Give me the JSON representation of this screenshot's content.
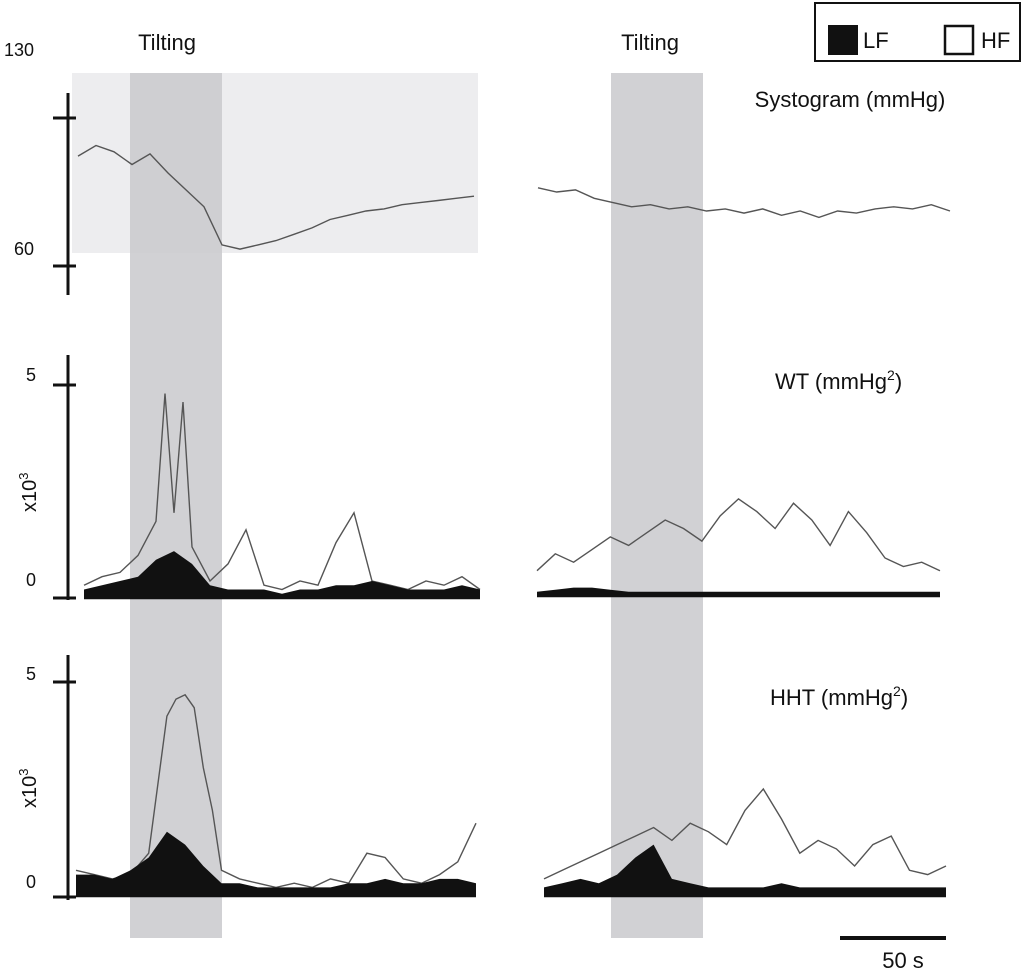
{
  "colors": {
    "tilt_band": "#c9c9cc",
    "systogram_bg": "#ededef",
    "axis": "#111111",
    "hf_line": "#555555",
    "lf_fill": "#111111"
  },
  "legend": {
    "lf_label": "LF",
    "hf_label": "HF"
  },
  "tilt_labels": [
    "Tilting",
    "Tilting"
  ],
  "scale_bar": {
    "label": "50 s",
    "seconds": 50
  },
  "chart_data": {
    "type": "line",
    "panels": [
      {
        "id": "systogram",
        "title": "Systogram (mmHg)",
        "y_ticks": [
          "130",
          "60"
        ],
        "ylim": [
          60,
          130
        ],
        "units": "mmHg",
        "tilting_window_s": [
          31,
          80
        ],
        "series": [
          {
            "name": "",
            "condition": "left",
            "x": [
              0,
              10,
              20,
              30,
              40,
              50,
              60,
              70,
              80,
              90,
              100,
              110,
              120,
              130,
              140,
              150,
              160,
              170,
              180,
              190,
              200,
              210,
              220
            ],
            "values": [
              112,
              117,
              114,
              108,
              113,
              104,
              96,
              88,
              70,
              68,
              70,
              72,
              75,
              78,
              82,
              84,
              86,
              87,
              89,
              90,
              91,
              92,
              93
            ]
          },
          {
            "name": "",
            "condition": "right",
            "x": [
              0,
              10,
              20,
              30,
              40,
              50,
              60,
              70,
              80,
              90,
              100,
              110,
              120,
              130,
              140,
              150,
              160,
              170,
              180,
              190,
              200,
              210,
              220
            ],
            "values": [
              97,
              95,
              96,
              92,
              90,
              88,
              89,
              87,
              88,
              86,
              87,
              85,
              87,
              84,
              86,
              83,
              86,
              85,
              87,
              88,
              87,
              89,
              86
            ]
          }
        ]
      },
      {
        "id": "wt",
        "title": "WT (mmHg",
        "title_sup": "2",
        "title_end": ")",
        "y_ticks": [
          "5",
          "0"
        ],
        "y_unit": "x10",
        "y_unit_sup": "3",
        "ylim": [
          0,
          5
        ],
        "series": [
          {
            "name": "HF",
            "condition": "left",
            "x": [
              0,
              10,
              20,
              30,
              40,
              45,
              50,
              55,
              60,
              70,
              80,
              90,
              100,
              110,
              120,
              130,
              140,
              150,
              160,
              170,
              180,
              190,
              200,
              210,
              220
            ],
            "values": [
              0.3,
              0.5,
              0.6,
              1.0,
              1.8,
              4.8,
              2.0,
              4.6,
              1.2,
              0.4,
              0.8,
              1.6,
              0.3,
              0.2,
              0.4,
              0.3,
              1.3,
              2.0,
              0.4,
              0.3,
              0.2,
              0.4,
              0.3,
              0.5,
              0.2
            ]
          },
          {
            "name": "LF",
            "condition": "left",
            "x": [
              0,
              10,
              20,
              30,
              40,
              50,
              60,
              70,
              80,
              90,
              100,
              110,
              120,
              130,
              140,
              150,
              160,
              170,
              180,
              190,
              200,
              210,
              220
            ],
            "values": [
              0.2,
              0.3,
              0.4,
              0.5,
              0.9,
              1.1,
              0.8,
              0.3,
              0.2,
              0.2,
              0.2,
              0.1,
              0.2,
              0.2,
              0.3,
              0.3,
              0.4,
              0.3,
              0.2,
              0.2,
              0.2,
              0.3,
              0.2
            ]
          },
          {
            "name": "HF",
            "condition": "right",
            "x": [
              0,
              10,
              20,
              30,
              40,
              50,
              60,
              70,
              80,
              90,
              100,
              110,
              120,
              130,
              140,
              150,
              160,
              170,
              180,
              190,
              200,
              210,
              220
            ],
            "values": [
              0.6,
              1.0,
              0.8,
              1.1,
              1.4,
              1.2,
              1.5,
              1.8,
              1.6,
              1.3,
              1.9,
              2.3,
              2.0,
              1.6,
              2.2,
              1.8,
              1.2,
              2.0,
              1.5,
              0.9,
              0.7,
              0.8,
              0.6
            ]
          },
          {
            "name": "LF",
            "condition": "right",
            "x": [
              0,
              10,
              20,
              30,
              40,
              50,
              60,
              70,
              80,
              90,
              100,
              110,
              120,
              130,
              140,
              150,
              160,
              170,
              180,
              190,
              200,
              210,
              220
            ],
            "values": [
              0.1,
              0.15,
              0.2,
              0.2,
              0.15,
              0.1,
              0.1,
              0.1,
              0.1,
              0.1,
              0.1,
              0.1,
              0.1,
              0.1,
              0.1,
              0.1,
              0.1,
              0.1,
              0.1,
              0.1,
              0.1,
              0.1,
              0.1
            ]
          }
        ]
      },
      {
        "id": "hht",
        "title": "HHT (mmHg",
        "title_sup": "2",
        "title_end": ")",
        "y_ticks": [
          "5",
          "0"
        ],
        "y_unit": "x10",
        "y_unit_sup": "3",
        "ylim": [
          0,
          5
        ],
        "series": [
          {
            "name": "HF",
            "condition": "left",
            "x": [
              0,
              10,
              20,
              30,
              40,
              50,
              55,
              60,
              65,
              70,
              75,
              80,
              90,
              100,
              110,
              120,
              130,
              140,
              150,
              160,
              170,
              180,
              190,
              200,
              210,
              220
            ],
            "values": [
              0.6,
              0.5,
              0.4,
              0.5,
              1.0,
              4.2,
              4.6,
              4.7,
              4.4,
              3.0,
              2.0,
              0.6,
              0.4,
              0.3,
              0.2,
              0.3,
              0.2,
              0.4,
              0.3,
              1.0,
              0.9,
              0.4,
              0.3,
              0.5,
              0.8,
              1.7
            ]
          },
          {
            "name": "LF",
            "condition": "left",
            "x": [
              0,
              10,
              20,
              30,
              40,
              50,
              60,
              70,
              80,
              90,
              100,
              110,
              120,
              130,
              140,
              150,
              160,
              170,
              180,
              190,
              200,
              210,
              220
            ],
            "values": [
              0.5,
              0.5,
              0.4,
              0.6,
              0.9,
              1.5,
              1.2,
              0.7,
              0.3,
              0.3,
              0.2,
              0.2,
              0.2,
              0.2,
              0.2,
              0.3,
              0.3,
              0.4,
              0.3,
              0.3,
              0.4,
              0.4,
              0.3
            ]
          },
          {
            "name": "HF",
            "condition": "right",
            "x": [
              0,
              10,
              20,
              30,
              40,
              50,
              60,
              70,
              80,
              90,
              100,
              110,
              120,
              130,
              140,
              150,
              160,
              170,
              180,
              190,
              200,
              210,
              220
            ],
            "values": [
              0.4,
              0.6,
              0.8,
              1.0,
              1.2,
              1.4,
              1.6,
              1.3,
              1.7,
              1.5,
              1.2,
              2.0,
              2.5,
              1.8,
              1.0,
              1.3,
              1.1,
              0.7,
              1.2,
              1.4,
              0.6,
              0.5,
              0.7
            ]
          },
          {
            "name": "LF",
            "condition": "right",
            "x": [
              0,
              10,
              20,
              30,
              40,
              50,
              60,
              70,
              80,
              90,
              100,
              110,
              120,
              130,
              140,
              150,
              160,
              170,
              180,
              190,
              200,
              210,
              220
            ],
            "values": [
              0.2,
              0.3,
              0.4,
              0.3,
              0.5,
              0.9,
              1.2,
              0.4,
              0.3,
              0.2,
              0.2,
              0.2,
              0.2,
              0.3,
              0.2,
              0.2,
              0.2,
              0.2,
              0.2,
              0.2,
              0.2,
              0.2,
              0.2
            ]
          }
        ]
      }
    ]
  }
}
